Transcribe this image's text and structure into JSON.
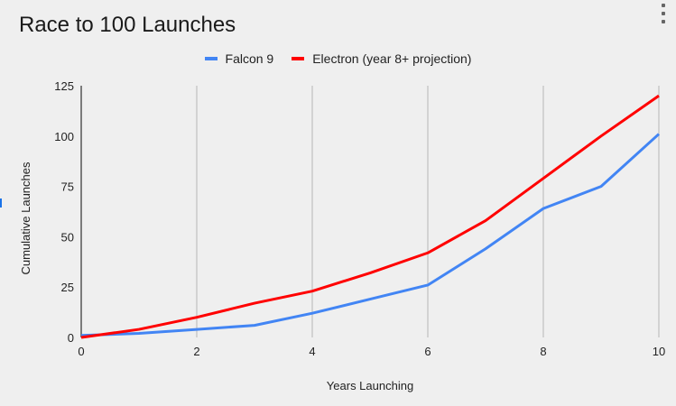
{
  "chart_title": "Race to 100 Launches",
  "menu": {
    "icon": "more-vert-icon"
  },
  "legend": [
    {
      "label": "Falcon 9",
      "color": "#4285f4"
    },
    {
      "label": "Electron (year 8+ projection)",
      "color": "#ff0000"
    }
  ],
  "axes": {
    "xlabel": "Years Launching",
    "ylabel": "Cumulative Launches",
    "xticks": [
      "0",
      "2",
      "4",
      "6",
      "8",
      "10"
    ],
    "yticks": [
      "0",
      "25",
      "50",
      "75",
      "100",
      "125"
    ]
  },
  "chart_data": {
    "type": "line",
    "title": "Race to 100 Launches",
    "xlabel": "Years Launching",
    "ylabel": "Cumulative Launches",
    "x": [
      0,
      1,
      2,
      3,
      4,
      5,
      6,
      7,
      8,
      9,
      10
    ],
    "series": [
      {
        "name": "Falcon 9",
        "color": "#4285f4",
        "values": [
          1,
          2,
          4,
          6,
          12,
          19,
          26,
          44,
          64,
          75,
          101
        ]
      },
      {
        "name": "Electron (year 8+ projection)",
        "color": "#ff0000",
        "values": [
          0,
          4,
          10,
          17,
          23,
          32,
          42,
          58,
          79,
          100,
          120
        ]
      }
    ],
    "xlim": [
      0,
      10
    ],
    "ylim": [
      0,
      125
    ],
    "xticks": [
      0,
      2,
      4,
      6,
      8,
      10
    ],
    "yticks": [
      0,
      25,
      50,
      75,
      100,
      125
    ],
    "grid": "vertical",
    "legend_position": "top"
  }
}
